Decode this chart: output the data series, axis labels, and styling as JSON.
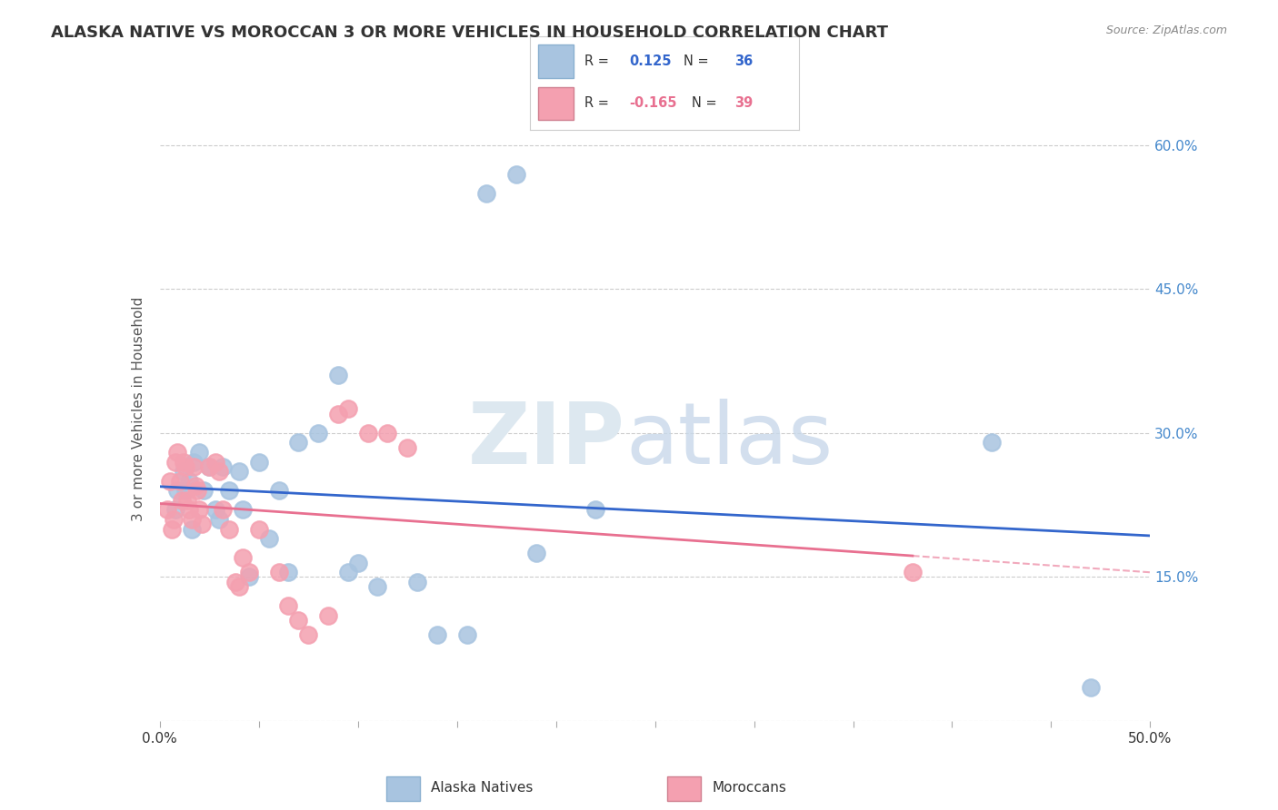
{
  "title": "ALASKA NATIVE VS MOROCCAN 3 OR MORE VEHICLES IN HOUSEHOLD CORRELATION CHART",
  "source": "Source: ZipAtlas.com",
  "ylabel": "3 or more Vehicles in Household",
  "xlim": [
    0.0,
    0.5
  ],
  "ylim": [
    0.0,
    0.65
  ],
  "alaska_native_R": 0.125,
  "alaska_native_N": 36,
  "moroccan_R": -0.165,
  "moroccan_N": 39,
  "alaska_native_color": "#a8c4e0",
  "moroccan_color": "#f4a0b0",
  "alaska_native_line_color": "#3366cc",
  "moroccan_line_color": "#e87090",
  "alaska_native_x": [
    0.008,
    0.009,
    0.012,
    0.013,
    0.015,
    0.016,
    0.017,
    0.02,
    0.022,
    0.025,
    0.028,
    0.03,
    0.032,
    0.035,
    0.04,
    0.042,
    0.045,
    0.05,
    0.055,
    0.06,
    0.065,
    0.07,
    0.08,
    0.09,
    0.095,
    0.1,
    0.11,
    0.13,
    0.14,
    0.155,
    0.165,
    0.18,
    0.19,
    0.22,
    0.42,
    0.47
  ],
  "alaska_native_y": [
    0.22,
    0.24,
    0.26,
    0.24,
    0.25,
    0.2,
    0.27,
    0.28,
    0.24,
    0.265,
    0.22,
    0.21,
    0.265,
    0.24,
    0.26,
    0.22,
    0.15,
    0.27,
    0.19,
    0.24,
    0.155,
    0.29,
    0.3,
    0.36,
    0.155,
    0.165,
    0.14,
    0.145,
    0.09,
    0.09,
    0.55,
    0.57,
    0.175,
    0.22,
    0.29,
    0.035
  ],
  "moroccan_x": [
    0.004,
    0.005,
    0.006,
    0.007,
    0.008,
    0.009,
    0.01,
    0.011,
    0.012,
    0.013,
    0.014,
    0.015,
    0.016,
    0.017,
    0.018,
    0.019,
    0.02,
    0.021,
    0.025,
    0.028,
    0.03,
    0.032,
    0.035,
    0.038,
    0.04,
    0.042,
    0.045,
    0.05,
    0.06,
    0.065,
    0.07,
    0.075,
    0.085,
    0.09,
    0.095,
    0.105,
    0.115,
    0.125,
    0.38
  ],
  "moroccan_y": [
    0.22,
    0.25,
    0.2,
    0.21,
    0.27,
    0.28,
    0.25,
    0.23,
    0.27,
    0.265,
    0.23,
    0.22,
    0.21,
    0.265,
    0.245,
    0.24,
    0.22,
    0.205,
    0.265,
    0.27,
    0.26,
    0.22,
    0.2,
    0.145,
    0.14,
    0.17,
    0.155,
    0.2,
    0.155,
    0.12,
    0.105,
    0.09,
    0.11,
    0.32,
    0.325,
    0.3,
    0.3,
    0.285,
    0.155
  ],
  "bg_color": "#ffffff",
  "grid_color": "#cccccc"
}
